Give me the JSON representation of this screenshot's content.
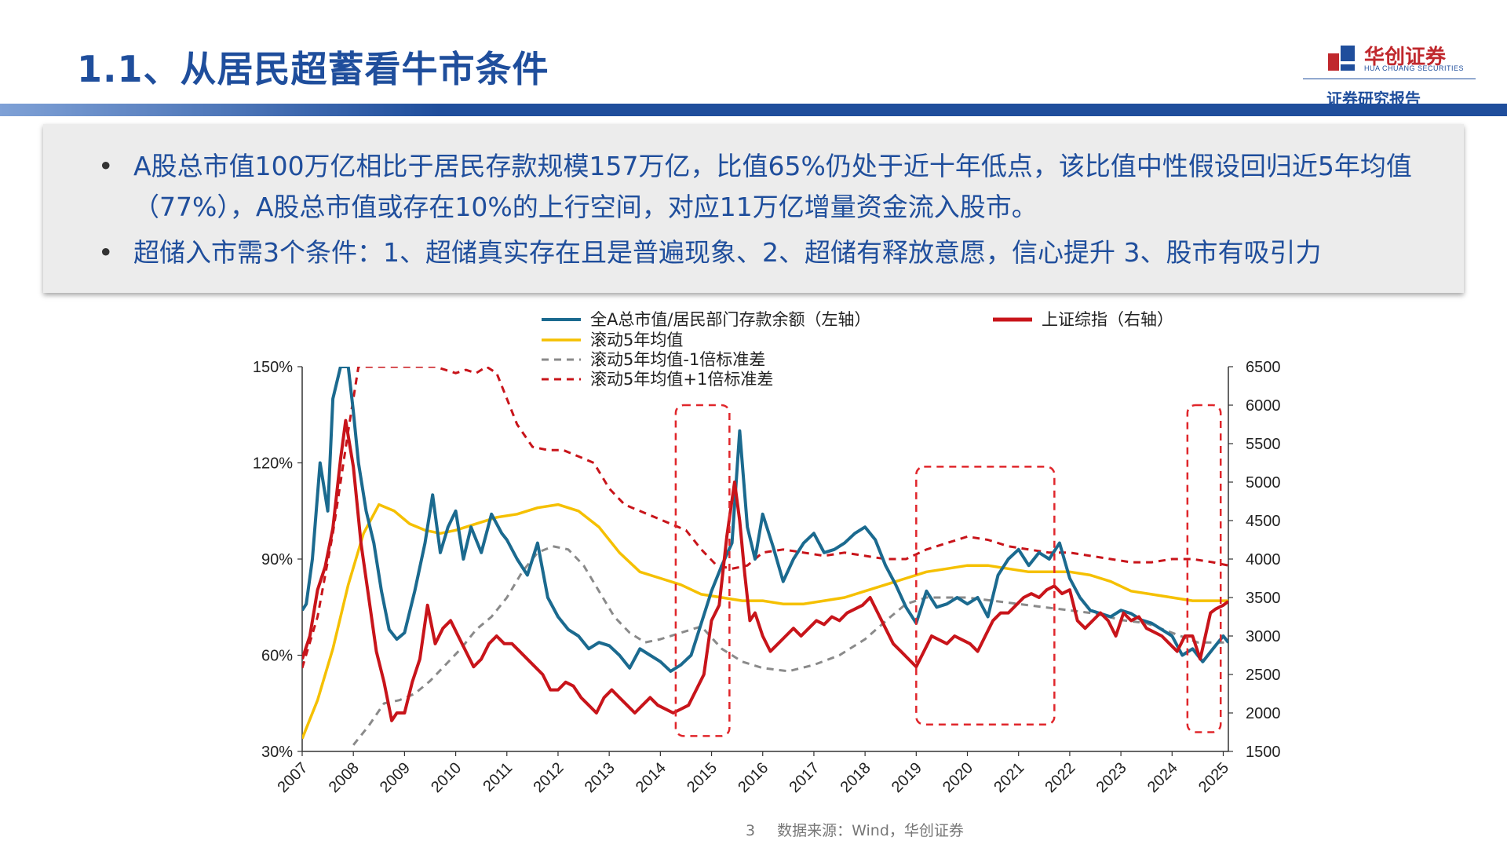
{
  "slide": {
    "title": "1.1、从居民超蓄看牛市条件",
    "brand_cn": "华创证券",
    "brand_en": "HUA CHUANG SECURITIES",
    "tagline": "证券研究报告",
    "page_number": "3",
    "source": "数据来源：Wind，华创证券",
    "bullets": [
      "A股总市值100万亿相比于居民存款规模157万亿，比值65%仍处于近十年低点，该比值中性假设回归近5年均值（77%），A股总市值或存在10%的上行空间，对应11万亿增量资金流入股市。",
      "超储入市需3个条件：1、超储真实存在且是普遍现象、2、超储有释放意愿，信心提升 3、股市有吸引力"
    ],
    "colors": {
      "brand_blue": "#1f4e9c",
      "brand_red": "#c0282d"
    }
  },
  "chart_data": {
    "type": "line",
    "title": "",
    "x_ticks": [
      "2007",
      "2008",
      "2009",
      "2010",
      "2011",
      "2012",
      "2013",
      "2014",
      "2015",
      "2016",
      "2017",
      "2018",
      "2019",
      "2020",
      "2021",
      "2022",
      "2023",
      "2024",
      "2025"
    ],
    "x_range": [
      2007.0,
      2025.1
    ],
    "y_left": {
      "ticks": [
        "30%",
        "60%",
        "90%",
        "120%",
        "150%"
      ],
      "range": [
        30,
        150
      ],
      "unit": "%"
    },
    "y_right": {
      "ticks": [
        "1500",
        "2000",
        "2500",
        "3000",
        "3500",
        "4000",
        "4500",
        "5000",
        "5500",
        "6000",
        "6500"
      ],
      "range": [
        1500,
        6500
      ]
    },
    "legend_position": "top",
    "colors": {
      "ratio": "#1b6a8f",
      "mean": "#f5c000",
      "minus1": "#8a8a8a",
      "plus1": "#c8141a",
      "index": "#c8141a",
      "box": "#e0262b"
    },
    "series": [
      {
        "name": "全A总市值/居民部门存款余额（左轴）",
        "axis": "left",
        "style": "solid",
        "x": [
          2007.0,
          2007.08,
          2007.2,
          2007.35,
          2007.5,
          2007.6,
          2007.75,
          2007.9,
          2008.0,
          2008.1,
          2008.25,
          2008.4,
          2008.55,
          2008.7,
          2008.85,
          2009.0,
          2009.2,
          2009.4,
          2009.55,
          2009.7,
          2009.85,
          2010.0,
          2010.15,
          2010.3,
          2010.5,
          2010.7,
          2010.9,
          2011.0,
          2011.2,
          2011.4,
          2011.6,
          2011.8,
          2012.0,
          2012.2,
          2012.4,
          2012.6,
          2012.8,
          2013.0,
          2013.2,
          2013.4,
          2013.6,
          2013.8,
          2014.0,
          2014.2,
          2014.4,
          2014.6,
          2014.8,
          2015.0,
          2015.2,
          2015.4,
          2015.55,
          2015.7,
          2015.85,
          2016.0,
          2016.2,
          2016.4,
          2016.6,
          2016.8,
          2017.0,
          2017.2,
          2017.4,
          2017.6,
          2017.8,
          2018.0,
          2018.2,
          2018.4,
          2018.6,
          2018.8,
          2019.0,
          2019.2,
          2019.4,
          2019.6,
          2019.8,
          2020.0,
          2020.2,
          2020.4,
          2020.6,
          2020.8,
          2021.0,
          2021.2,
          2021.4,
          2021.6,
          2021.8,
          2022.0,
          2022.2,
          2022.4,
          2022.6,
          2022.8,
          2023.0,
          2023.2,
          2023.4,
          2023.6,
          2023.8,
          2024.0,
          2024.2,
          2024.4,
          2024.6,
          2024.8,
          2025.0,
          2025.1
        ],
        "y": [
          74,
          76,
          90,
          120,
          105,
          140,
          160,
          150,
          136,
          120,
          105,
          95,
          80,
          68,
          65,
          67,
          80,
          95,
          110,
          92,
          100,
          105,
          90,
          100,
          92,
          104,
          98,
          96,
          90,
          85,
          95,
          78,
          72,
          68,
          66,
          62,
          64,
          63,
          60,
          56,
          62,
          60,
          58,
          55,
          57,
          60,
          70,
          80,
          88,
          95,
          130,
          100,
          90,
          104,
          94,
          83,
          90,
          95,
          98,
          92,
          93,
          95,
          98,
          100,
          96,
          88,
          82,
          75,
          70,
          80,
          75,
          76,
          78,
          76,
          78,
          72,
          85,
          90,
          93,
          88,
          92,
          90,
          95,
          84,
          78,
          74,
          73,
          72,
          74,
          73,
          71,
          70,
          68,
          66,
          60,
          62,
          58,
          62,
          66,
          64
        ]
      },
      {
        "name": "滚动5年均值",
        "axis": "left",
        "style": "solid",
        "x": [
          2007.0,
          2007.3,
          2007.6,
          2007.9,
          2008.2,
          2008.5,
          2008.8,
          2009.1,
          2009.4,
          2009.7,
          2010.0,
          2010.4,
          2010.8,
          2011.2,
          2011.6,
          2012.0,
          2012.4,
          2012.8,
          2013.2,
          2013.6,
          2014.0,
          2014.4,
          2014.8,
          2015.2,
          2015.6,
          2016.0,
          2016.4,
          2016.8,
          2017.2,
          2017.6,
          2018.0,
          2018.4,
          2018.8,
          2019.2,
          2019.6,
          2020.0,
          2020.4,
          2020.8,
          2021.2,
          2021.6,
          2022.0,
          2022.4,
          2022.8,
          2023.2,
          2023.6,
          2024.0,
          2024.4,
          2024.8,
          2025.1
        ],
        "y": [
          34,
          46,
          62,
          82,
          98,
          107,
          105,
          101,
          99,
          98,
          99,
          101,
          103,
          104,
          106,
          107,
          105,
          100,
          92,
          86,
          84,
          82,
          79,
          78,
          77,
          77,
          76,
          76,
          77,
          78,
          80,
          82,
          84,
          86,
          87,
          88,
          88,
          87,
          86,
          86,
          86,
          85,
          83,
          80,
          79,
          78,
          77,
          77,
          77
        ]
      },
      {
        "name": "滚动5年均值-1倍标准差",
        "axis": "left",
        "style": "dash",
        "x": [
          2008.0,
          2008.3,
          2008.6,
          2008.9,
          2009.2,
          2009.5,
          2009.8,
          2010.1,
          2010.4,
          2010.7,
          2011.0,
          2011.3,
          2011.6,
          2011.9,
          2012.2,
          2012.5,
          2012.8,
          2013.1,
          2013.4,
          2013.7,
          2014.0,
          2014.4,
          2014.8,
          2015.2,
          2015.6,
          2016.0,
          2016.5,
          2017.0,
          2017.5,
          2018.0,
          2018.5,
          2018.8,
          2019.2,
          2019.6,
          2020.0,
          2020.5,
          2021.0,
          2021.5,
          2022.0,
          2022.5,
          2023.0,
          2023.5,
          2024.0,
          2024.5,
          2025.1
        ],
        "y": [
          32,
          38,
          45,
          46,
          48,
          52,
          57,
          62,
          68,
          72,
          78,
          86,
          92,
          94,
          93,
          88,
          80,
          72,
          67,
          64,
          65,
          67,
          69,
          62,
          58,
          56,
          55,
          57,
          60,
          65,
          72,
          76,
          78,
          78,
          78,
          77,
          76,
          75,
          74,
          73,
          71,
          70,
          67,
          64,
          64
        ]
      },
      {
        "name": "滚动5年均值+1倍标准差",
        "axis": "left",
        "style": "dash",
        "x": [
          2007.0,
          2007.3,
          2007.6,
          2007.9,
          2008.1,
          2009.6,
          2009.8,
          2010.0,
          2010.2,
          2010.4,
          2010.6,
          2010.8,
          2011.0,
          2011.2,
          2011.5,
          2011.8,
          2012.1,
          2012.4,
          2012.7,
          2013.0,
          2013.3,
          2013.6,
          2013.9,
          2014.2,
          2014.5,
          2014.8,
          2015.1,
          2015.4,
          2015.7,
          2016.0,
          2016.4,
          2016.8,
          2017.2,
          2017.6,
          2018.0,
          2018.4,
          2018.8,
          2019.2,
          2019.6,
          2020.0,
          2020.4,
          2020.8,
          2021.2,
          2021.6,
          2022.0,
          2022.4,
          2022.8,
          2023.2,
          2023.6,
          2024.0,
          2024.4,
          2024.8,
          2025.1
        ],
        "y": [
          56,
          72,
          98,
          130,
          150,
          150,
          149,
          148,
          149,
          148,
          150,
          148,
          140,
          132,
          125,
          124,
          124,
          122,
          120,
          112,
          107,
          105,
          103,
          101,
          99,
          93,
          88,
          87,
          88,
          92,
          93,
          92,
          91,
          92,
          91,
          90,
          90,
          93,
          95,
          97,
          96,
          94,
          93,
          92,
          92,
          91,
          90,
          89,
          89,
          90,
          90,
          89,
          88
        ]
      },
      {
        "name": "上证综指（右轴）",
        "axis": "right",
        "style": "solid",
        "x": [
          2007.0,
          2007.15,
          2007.3,
          2007.45,
          2007.6,
          2007.75,
          2007.85,
          2008.0,
          2008.15,
          2008.3,
          2008.45,
          2008.6,
          2008.75,
          2008.85,
          2009.0,
          2009.15,
          2009.3,
          2009.45,
          2009.6,
          2009.75,
          2009.9,
          2010.05,
          2010.2,
          2010.35,
          2010.5,
          2010.65,
          2010.8,
          2010.95,
          2011.1,
          2011.25,
          2011.4,
          2011.55,
          2011.7,
          2011.85,
          2012.0,
          2012.15,
          2012.3,
          2012.45,
          2012.6,
          2012.75,
          2012.9,
          2013.05,
          2013.2,
          2013.35,
          2013.5,
          2013.65,
          2013.8,
          2013.95,
          2014.1,
          2014.25,
          2014.4,
          2014.55,
          2014.7,
          2014.85,
          2015.0,
          2015.15,
          2015.3,
          2015.45,
          2015.55,
          2015.65,
          2015.75,
          2015.85,
          2016.0,
          2016.15,
          2016.3,
          2016.45,
          2016.6,
          2016.75,
          2016.9,
          2017.05,
          2017.2,
          2017.35,
          2017.5,
          2017.65,
          2017.8,
          2017.95,
          2018.1,
          2018.25,
          2018.4,
          2018.55,
          2018.7,
          2018.85,
          2019.0,
          2019.15,
          2019.3,
          2019.45,
          2019.6,
          2019.75,
          2019.9,
          2020.05,
          2020.2,
          2020.35,
          2020.5,
          2020.65,
          2020.8,
          2020.95,
          2021.1,
          2021.25,
          2021.4,
          2021.55,
          2021.7,
          2021.85,
          2022.0,
          2022.15,
          2022.3,
          2022.45,
          2022.6,
          2022.75,
          2022.9,
          2023.05,
          2023.2,
          2023.35,
          2023.5,
          2023.65,
          2023.8,
          2023.95,
          2024.1,
          2024.25,
          2024.4,
          2024.55,
          2024.65,
          2024.75,
          2024.85,
          2025.0,
          2025.1
        ],
        "y": [
          2700,
          3000,
          3600,
          3900,
          4400,
          5300,
          5800,
          5200,
          4200,
          3500,
          2800,
          2400,
          1900,
          2000,
          2000,
          2400,
          2700,
          3400,
          2900,
          3100,
          3200,
          3000,
          2800,
          2600,
          2700,
          2900,
          3000,
          2900,
          2900,
          2800,
          2700,
          2600,
          2500,
          2300,
          2300,
          2400,
          2350,
          2200,
          2100,
          2000,
          2200,
          2300,
          2200,
          2100,
          2000,
          2100,
          2200,
          2100,
          2050,
          2000,
          2050,
          2100,
          2300,
          2500,
          3200,
          3400,
          4300,
          5000,
          4500,
          3800,
          3200,
          3300,
          3000,
          2800,
          2900,
          3000,
          3100,
          3000,
          3100,
          3200,
          3150,
          3250,
          3200,
          3300,
          3350,
          3400,
          3500,
          3300,
          3100,
          2900,
          2800,
          2700,
          2600,
          2800,
          3000,
          2950,
          2900,
          3000,
          2950,
          2900,
          2800,
          3000,
          3200,
          3300,
          3300,
          3400,
          3500,
          3550,
          3500,
          3600,
          3650,
          3550,
          3600,
          3200,
          3100,
          3200,
          3300,
          3200,
          3000,
          3300,
          3200,
          3250,
          3100,
          3050,
          3000,
          2900,
          2800,
          3000,
          3000,
          2700,
          3000,
          3300,
          3350,
          3400,
          3450
        ]
      }
    ],
    "highlight_boxes": [
      {
        "x": [
          2014.3,
          2015.35
        ],
        "y": [
          1700,
          6000
        ]
      },
      {
        "x": [
          2019.0,
          2021.7
        ],
        "y": [
          1850,
          5200
        ]
      },
      {
        "x": [
          2024.3,
          2024.95
        ],
        "y": [
          1750,
          6000
        ]
      }
    ]
  }
}
